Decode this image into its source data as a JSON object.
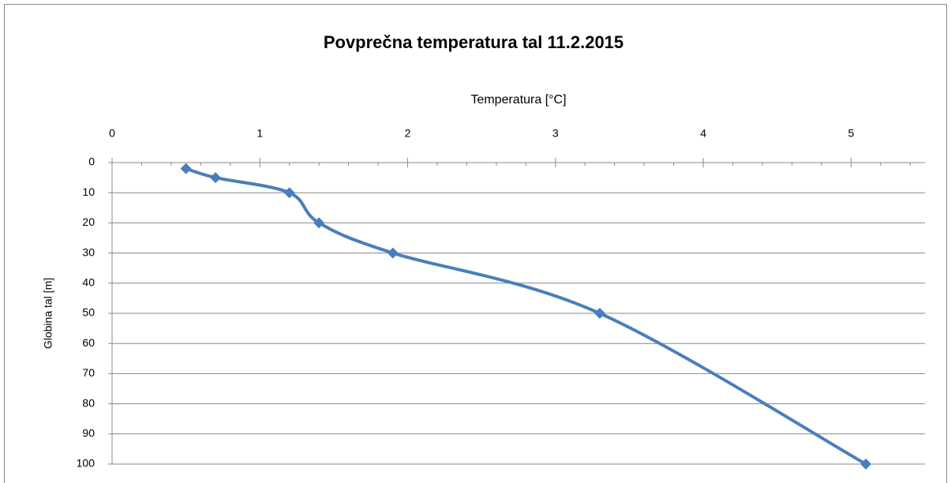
{
  "chart_data": {
    "type": "line",
    "title": "Povprečna temperatura tal 11.2.2015",
    "x_label": "Temperatura [°C]",
    "y_label": "Globina tal [m]",
    "x": [
      0.5,
      0.7,
      1.2,
      1.4,
      1.9,
      3.3,
      5.1
    ],
    "series": [
      {
        "color": "#4a7ebb",
        "values": [
          2,
          5,
          10,
          20,
          30,
          50,
          100
        ]
      }
    ],
    "xlim": [
      0,
      5.5
    ],
    "xticks": [
      0,
      1,
      2,
      3,
      4,
      5
    ],
    "xminorticks": [
      0.2,
      0.4,
      0.6,
      0.8,
      1.2,
      1.4,
      1.6,
      1.8,
      2.2,
      2.4,
      2.6,
      2.8,
      3.2,
      3.4,
      3.6,
      3.8,
      4.2,
      4.4,
      4.6,
      4.8,
      5.2,
      5.4
    ],
    "ylim": [
      0,
      100
    ],
    "yticks": [
      0,
      10,
      20,
      30,
      40,
      50,
      60,
      70,
      80,
      90,
      100
    ],
    "y_inverted": true,
    "x_axis_position": "top",
    "grid": true
  }
}
